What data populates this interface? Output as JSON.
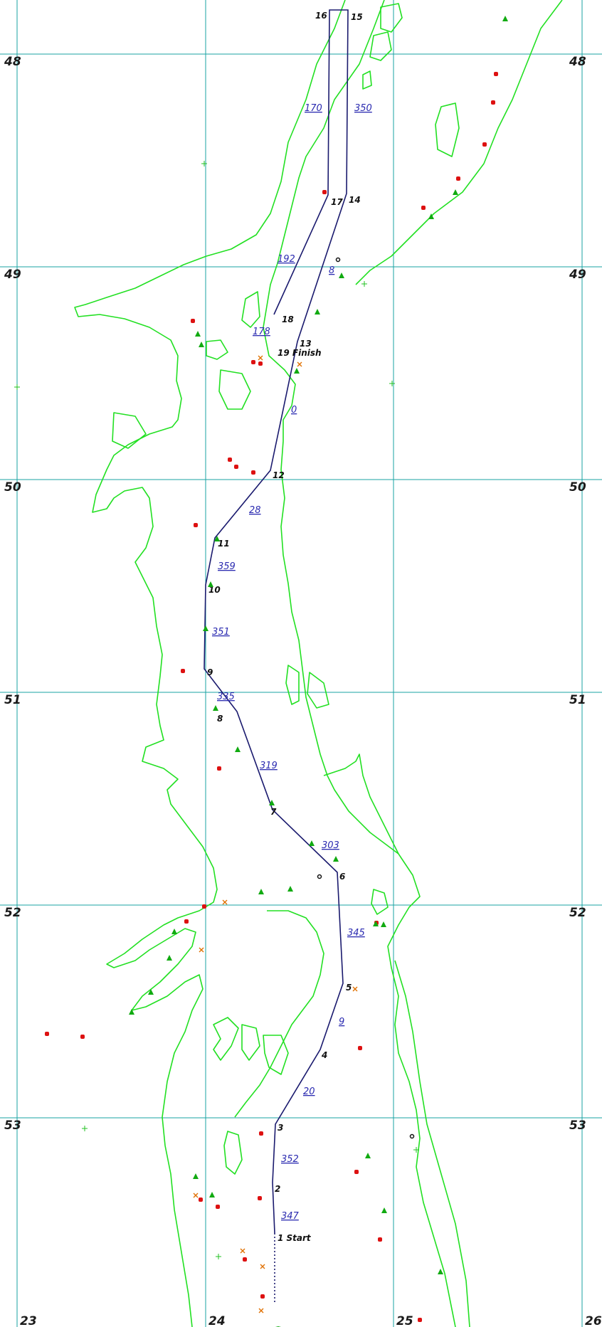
{
  "map": {
    "colors": {
      "grid": "#1aa3a3",
      "shoreline": "#22e022",
      "route": "#1a1a6e",
      "heading_label": "#2a2ab0",
      "waypoint_label": "#111111",
      "buoy_red": "#dd1111",
      "buoy_green": "#11aa11",
      "hazard_x": "#e07000"
    },
    "latitude_labels": [
      "48",
      "49",
      "50",
      "51",
      "52",
      "53"
    ],
    "longitude_labels": [
      "23",
      "24",
      "25",
      "26"
    ],
    "waypoints": [
      {
        "label": "1 Start"
      },
      {
        "label": "2"
      },
      {
        "label": "3"
      },
      {
        "label": "4"
      },
      {
        "label": "5"
      },
      {
        "label": "6"
      },
      {
        "label": "7"
      },
      {
        "label": "8"
      },
      {
        "label": "9"
      },
      {
        "label": "10"
      },
      {
        "label": "11"
      },
      {
        "label": "12"
      },
      {
        "label": "13"
      },
      {
        "label": "14"
      },
      {
        "label": "15"
      },
      {
        "label": "16"
      },
      {
        "label": "17"
      },
      {
        "label": "18"
      },
      {
        "label": "19 Finish"
      }
    ],
    "headings": [
      "347",
      "352",
      "20",
      "9",
      "345",
      "303",
      "319",
      "335",
      "351",
      "359",
      "28",
      "0",
      "8",
      "350",
      "170",
      "192",
      "178"
    ],
    "marker_icons": [
      "red-buoy-icon",
      "green-buoy-icon",
      "hazard-x-icon",
      "black-buoy-icon",
      "cross-marker-icon"
    ]
  }
}
